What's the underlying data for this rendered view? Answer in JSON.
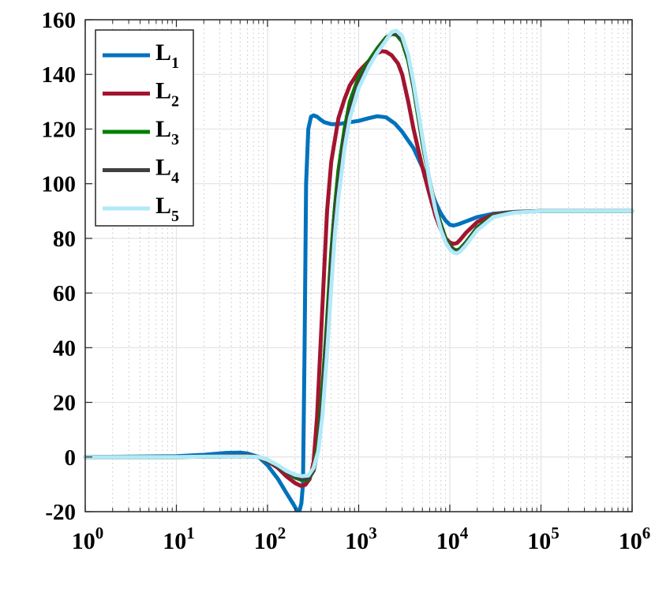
{
  "chart_data": {
    "type": "line",
    "title": "",
    "xlabel": "",
    "ylabel": "",
    "x_scale": "log",
    "xlim": [
      1,
      1000000
    ],
    "ylim": [
      -20,
      160
    ],
    "grid": true,
    "legend_position": "top-left",
    "x_tick_labels": [
      {
        "base": "10",
        "exp": "0"
      },
      {
        "base": "10",
        "exp": "1"
      },
      {
        "base": "10",
        "exp": "2"
      },
      {
        "base": "10",
        "exp": "3"
      },
      {
        "base": "10",
        "exp": "4"
      },
      {
        "base": "10",
        "exp": "5"
      },
      {
        "base": "10",
        "exp": "6"
      }
    ],
    "y_tick_labels": [
      "-20",
      "0",
      "20",
      "40",
      "60",
      "80",
      "100",
      "120",
      "140",
      "160"
    ],
    "series": [
      {
        "name": {
          "base": "L",
          "sub": "1"
        },
        "color": "#0072BD",
        "x": [
          1,
          10,
          20,
          35,
          50,
          60,
          80,
          100,
          130,
          160,
          190,
          210,
          225,
          235,
          245,
          255,
          265,
          280,
          300,
          320,
          350,
          380,
          420,
          500,
          600,
          700,
          800,
          1000,
          1300,
          1600,
          2000,
          2500,
          3000,
          4000,
          5000,
          6000,
          7000,
          8000,
          9000,
          10000,
          11000,
          12500,
          15000,
          20000,
          30000,
          50000,
          100000,
          1000000
        ],
        "y": [
          0,
          0.3,
          0.8,
          1.5,
          1.6,
          1.3,
          0,
          -3,
          -8,
          -13,
          -17,
          -19.5,
          -19.5,
          -17,
          -10,
          40,
          100,
          120,
          124.5,
          125,
          124.5,
          123.5,
          122.5,
          121.8,
          121.8,
          122.2,
          122.5,
          123,
          124,
          124.7,
          124.3,
          122,
          119,
          113,
          106,
          99,
          93,
          89,
          86.5,
          85,
          84.7,
          85.2,
          86.2,
          87.8,
          89,
          89.7,
          90,
          90
        ]
      },
      {
        "name": {
          "base": "L",
          "sub": "2"
        },
        "color": "#A2142F",
        "x": [
          1,
          10,
          30,
          60,
          80,
          100,
          130,
          160,
          200,
          230,
          260,
          290,
          320,
          350,
          400,
          450,
          500,
          600,
          700,
          800,
          1000,
          1300,
          1600,
          1800,
          2000,
          2300,
          2700,
          3000,
          3500,
          4000,
          5000,
          6000,
          7000,
          8000,
          9000,
          10000,
          11000,
          12000,
          13000,
          15000,
          20000,
          30000,
          50000,
          100000,
          1000000
        ],
        "y": [
          0,
          0,
          0.3,
          0.5,
          0,
          -1.5,
          -4,
          -7,
          -9.5,
          -10.5,
          -10.2,
          -8,
          -2,
          15,
          55,
          90,
          108,
          124,
          131,
          136,
          141,
          145,
          147.8,
          148.5,
          148.3,
          147,
          144,
          140,
          130,
          120,
          106,
          96,
          88,
          83,
          80,
          78.5,
          78,
          78.3,
          79.5,
          82,
          86,
          88.7,
          89.6,
          90,
          90
        ]
      },
      {
        "name": {
          "base": "L",
          "sub": "3"
        },
        "color": "#007F00",
        "x": [
          1,
          10,
          30,
          60,
          80,
          100,
          130,
          160,
          200,
          240,
          280,
          320,
          360,
          400,
          450,
          500,
          550,
          600,
          700,
          800,
          1000,
          1300,
          1600,
          2000,
          2300,
          2600,
          3000,
          3500,
          4000,
          5000,
          6000,
          7000,
          8000,
          9000,
          10000,
          11000,
          12000,
          13000,
          15000,
          20000,
          30000,
          50000,
          100000,
          1000000
        ],
        "y": [
          0,
          0,
          0.2,
          0.3,
          0,
          -1.2,
          -3.5,
          -5.5,
          -7.5,
          -8.5,
          -8.2,
          -5,
          5,
          25,
          50,
          75,
          92,
          105,
          120,
          130,
          139,
          145,
          149.5,
          153.5,
          154.8,
          154.5,
          152,
          145,
          135,
          115,
          101,
          91,
          85,
          80,
          77.5,
          76,
          75.6,
          76.2,
          78.5,
          84,
          88.3,
          89.5,
          90,
          90
        ]
      },
      {
        "name": {
          "base": "L",
          "sub": "4"
        },
        "color": "#404040",
        "x": [
          1,
          10,
          30,
          60,
          80,
          100,
          130,
          160,
          200,
          240,
          280,
          320,
          360,
          400,
          450,
          500,
          550,
          600,
          700,
          800,
          1000,
          1300,
          1600,
          2000,
          2300,
          2600,
          3000,
          3500,
          4000,
          5000,
          6000,
          7000,
          8000,
          9000,
          10000,
          11000,
          12000,
          13000,
          15000,
          20000,
          30000,
          50000,
          100000,
          1000000
        ],
        "y": [
          0,
          0,
          0.2,
          0.2,
          0,
          -1,
          -3.5,
          -5.5,
          -7.2,
          -8,
          -7.8,
          -5,
          3,
          20,
          45,
          70,
          88,
          100,
          117,
          127,
          137,
          144,
          148.5,
          153,
          155,
          155,
          153,
          146,
          136,
          116,
          101,
          91,
          84,
          79.5,
          77,
          75.5,
          75,
          75.7,
          78,
          83.5,
          88,
          89.5,
          90,
          90
        ]
      },
      {
        "name": {
          "base": "L",
          "sub": "5"
        },
        "color": "#B0EAF8",
        "x": [
          1,
          10,
          30,
          60,
          80,
          100,
          130,
          160,
          200,
          240,
          280,
          320,
          360,
          400,
          450,
          500,
          550,
          600,
          700,
          800,
          1000,
          1300,
          1600,
          2000,
          2300,
          2600,
          3000,
          3500,
          4000,
          5000,
          6000,
          7000,
          8000,
          9000,
          10000,
          11000,
          12000,
          13000,
          15000,
          20000,
          30000,
          50000,
          100000,
          1000000
        ],
        "y": [
          0,
          0,
          0.2,
          0.2,
          0,
          -1,
          -3,
          -5,
          -6.5,
          -7,
          -6.8,
          -4,
          2,
          15,
          38,
          62,
          82,
          95,
          113,
          124,
          135,
          143,
          148,
          152.5,
          155.5,
          156,
          154,
          147,
          137,
          117,
          101,
          90,
          83,
          78.5,
          76,
          74.8,
          74.5,
          75.2,
          77.5,
          83,
          87.8,
          89.4,
          90,
          90
        ]
      }
    ]
  }
}
